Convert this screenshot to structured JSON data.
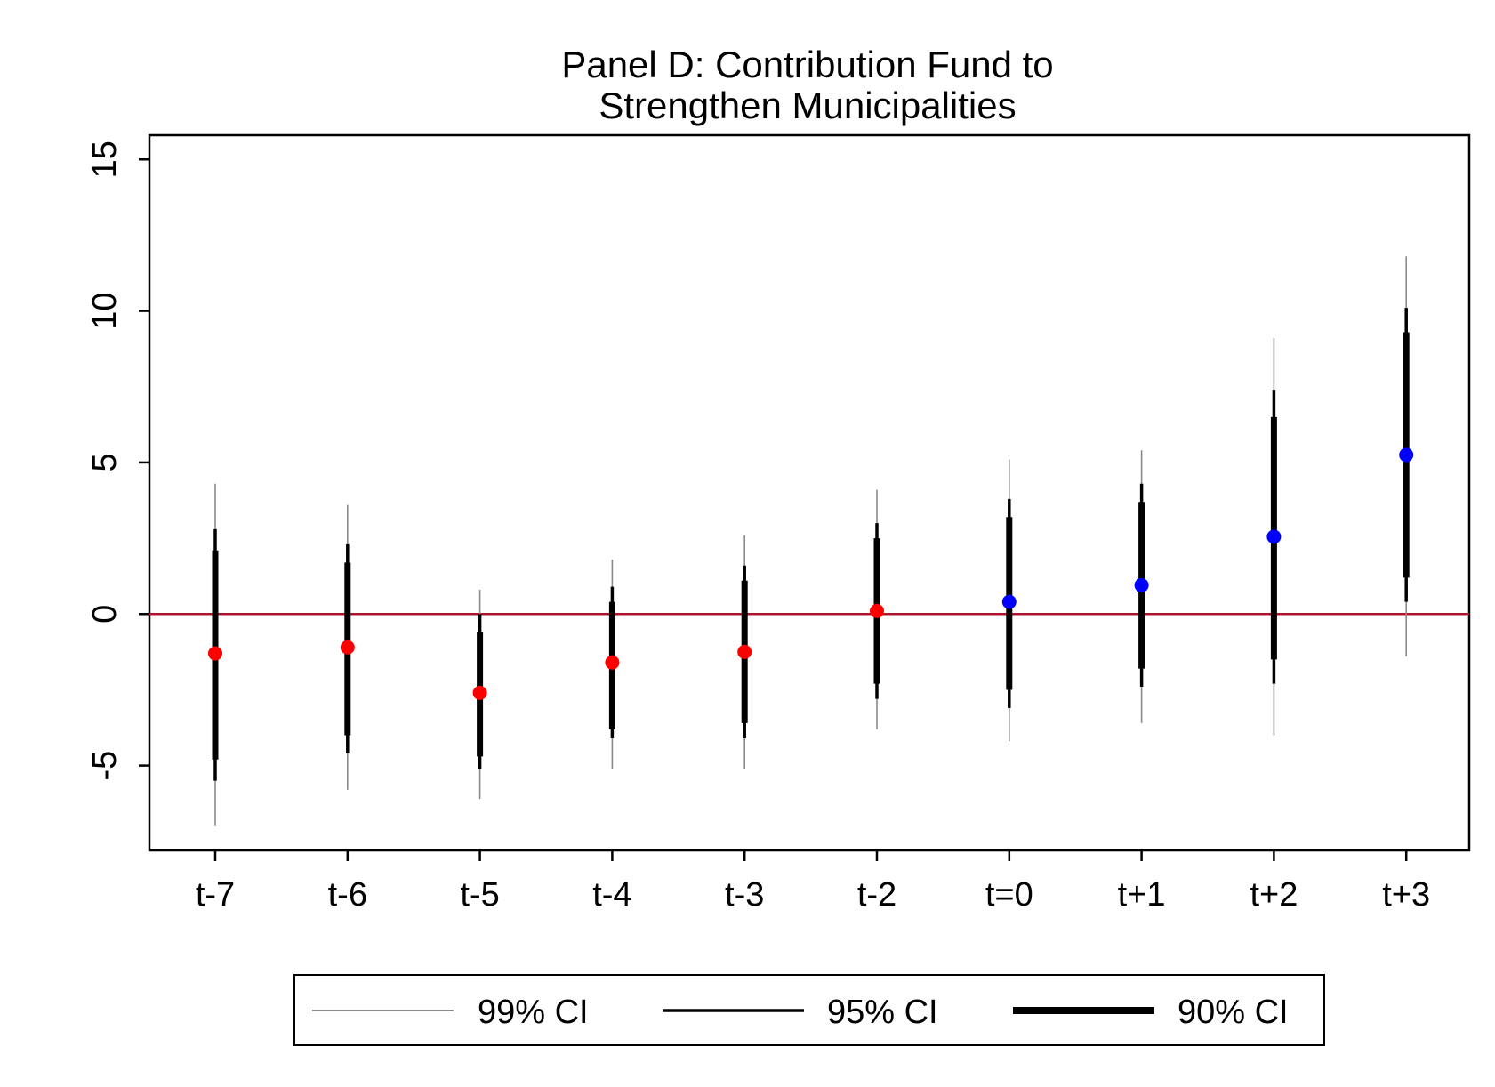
{
  "chart_data": {
    "type": "scatter",
    "title": [
      "Panel D: Contribution Fund to",
      "Strengthen Municipalities"
    ],
    "xlabel": "",
    "ylabel": "",
    "categories": [
      "t-7",
      "t-6",
      "t-5",
      "t-4",
      "t-3",
      "t-2",
      "t=0",
      "t+1",
      "t+2",
      "t+3"
    ],
    "ylim": [
      -7.8,
      15.8
    ],
    "yticks": [
      15,
      10,
      5,
      0,
      -5
    ],
    "ytick_labels": [
      "15",
      "10",
      "5",
      "0",
      "-5"
    ],
    "grid": false,
    "reference_line": {
      "y": 0,
      "color": "#b0142c"
    },
    "estimates": [
      -1.3,
      -1.1,
      -2.6,
      -1.6,
      -1.25,
      0.1,
      0.4,
      0.95,
      2.55,
      5.25
    ],
    "point_colors": [
      "#ff0000",
      "#ff0000",
      "#ff0000",
      "#ff0000",
      "#ff0000",
      "#ff0000",
      "#0000ff",
      "#0000ff",
      "#0000ff",
      "#0000ff"
    ],
    "series": [
      {
        "name": "99% CI",
        "lower": [
          -7.0,
          -5.8,
          -6.1,
          -5.1,
          -5.1,
          -3.8,
          -4.2,
          -3.6,
          -4.0,
          -1.4
        ],
        "upper": [
          4.3,
          3.6,
          0.8,
          1.8,
          2.6,
          4.1,
          5.1,
          5.4,
          9.1,
          11.8
        ]
      },
      {
        "name": "95% CI",
        "lower": [
          -5.5,
          -4.6,
          -5.1,
          -4.1,
          -4.1,
          -2.8,
          -3.1,
          -2.4,
          -2.3,
          0.4
        ],
        "upper": [
          2.8,
          2.3,
          0.0,
          0.9,
          1.6,
          3.0,
          3.8,
          4.3,
          7.4,
          10.1
        ]
      },
      {
        "name": "90% CI",
        "lower": [
          -4.8,
          -4.0,
          -4.7,
          -3.8,
          -3.6,
          -2.3,
          -2.5,
          -1.8,
          -1.5,
          1.2
        ],
        "upper": [
          2.1,
          1.7,
          -0.6,
          0.4,
          1.1,
          2.5,
          3.2,
          3.7,
          6.5,
          9.3
        ]
      }
    ],
    "legend": {
      "position": "bottom",
      "entries": [
        "99% CI",
        "95% CI",
        "90% CI"
      ],
      "line_colors": [
        "#8a8a8a",
        "#000000",
        "#000000"
      ]
    }
  }
}
